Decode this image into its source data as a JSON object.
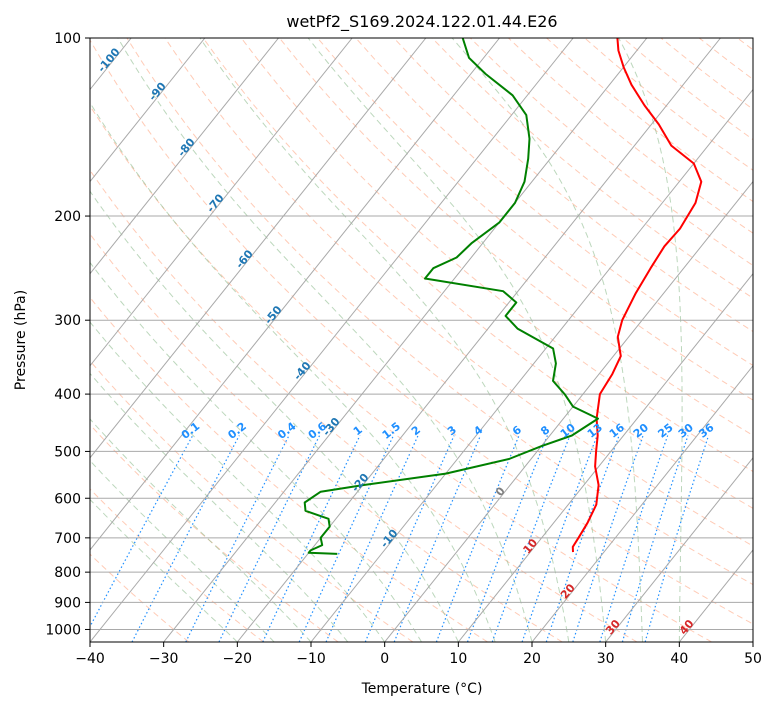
{
  "chart_data": {
    "type": "line",
    "title": "wetPf2_S169.2024.122.01.44.E26",
    "xlabel": "Temperature (°C)",
    "ylabel": "Pressure (hPa)",
    "xlim": [
      -40,
      50
    ],
    "ylim": [
      1050,
      100
    ],
    "y_scale": "log",
    "x_ticks": [
      "−40",
      "−30",
      "−20",
      "−10",
      "0",
      "10",
      "20",
      "30",
      "40",
      "50"
    ],
    "y_ticks": [
      "1000",
      "900",
      "800",
      "700",
      "600",
      "500",
      "400",
      "300",
      "200",
      "100"
    ],
    "grid": true,
    "series": [
      {
        "color": "#ff0000",
        "points": [
          {
            "t": 15.8,
            "p": 740
          },
          {
            "t": 15.2,
            "p": 725
          },
          {
            "t": 15.0,
            "p": 700
          },
          {
            "t": 14.6,
            "p": 660
          },
          {
            "t": 13.8,
            "p": 615
          },
          {
            "t": 12.0,
            "p": 570
          },
          {
            "t": 9.5,
            "p": 530
          },
          {
            "t": 8.0,
            "p": 500
          },
          {
            "t": 6.5,
            "p": 470
          },
          {
            "t": 4.5,
            "p": 440
          },
          {
            "t": 2.3,
            "p": 400
          },
          {
            "t": 1.8,
            "p": 370
          },
          {
            "t": 1.0,
            "p": 345
          },
          {
            "t": -1.5,
            "p": 320
          },
          {
            "t": -2.7,
            "p": 300
          },
          {
            "t": -3.8,
            "p": 270
          },
          {
            "t": -4.5,
            "p": 245
          },
          {
            "t": -5.0,
            "p": 225
          },
          {
            "t": -4.8,
            "p": 210
          },
          {
            "t": -5.5,
            "p": 190
          },
          {
            "t": -7.0,
            "p": 175
          },
          {
            "t": -10.0,
            "p": 163
          },
          {
            "t": -15.0,
            "p": 152
          },
          {
            "t": -19.0,
            "p": 140
          },
          {
            "t": -23.0,
            "p": 130
          },
          {
            "t": -27.0,
            "p": 120
          },
          {
            "t": -30.0,
            "p": 112
          },
          {
            "t": -32.5,
            "p": 105
          },
          {
            "t": -34.0,
            "p": 100
          }
        ]
      },
      {
        "color": "#008000",
        "points": [
          {
            "t": -16.0,
            "p": 745
          },
          {
            "t": -20.0,
            "p": 742
          },
          {
            "t": -20.0,
            "p": 735
          },
          {
            "t": -19.0,
            "p": 720
          },
          {
            "t": -20.0,
            "p": 700
          },
          {
            "t": -20.0,
            "p": 670
          },
          {
            "t": -21.0,
            "p": 650
          },
          {
            "t": -25.0,
            "p": 630
          },
          {
            "t": -26.0,
            "p": 610
          },
          {
            "t": -25.0,
            "p": 585
          },
          {
            "t": -20.0,
            "p": 570
          },
          {
            "t": -10.0,
            "p": 545
          },
          {
            "t": -3.0,
            "p": 515
          },
          {
            "t": 0.0,
            "p": 490
          },
          {
            "t": 3.0,
            "p": 470
          },
          {
            "t": 4.7,
            "p": 440
          },
          {
            "t": 0.0,
            "p": 420
          },
          {
            "t": -2.5,
            "p": 400
          },
          {
            "t": -5.5,
            "p": 380
          },
          {
            "t": -7.0,
            "p": 355
          },
          {
            "t": -9.0,
            "p": 335
          },
          {
            "t": -16.0,
            "p": 310
          },
          {
            "t": -19.0,
            "p": 295
          },
          {
            "t": -19.0,
            "p": 280
          },
          {
            "t": -22.0,
            "p": 268
          },
          {
            "t": -34.0,
            "p": 255
          },
          {
            "t": -34.0,
            "p": 245
          },
          {
            "t": -32.0,
            "p": 235
          },
          {
            "t": -31.5,
            "p": 222
          },
          {
            "t": -30.0,
            "p": 205
          },
          {
            "t": -30.0,
            "p": 190
          },
          {
            "t": -31.0,
            "p": 175
          },
          {
            "t": -33.0,
            "p": 160
          },
          {
            "t": -35.0,
            "p": 148
          },
          {
            "t": -38.0,
            "p": 135
          },
          {
            "t": -42.0,
            "p": 125
          },
          {
            "t": -48.0,
            "p": 115
          },
          {
            "t": -52.0,
            "p": 108
          },
          {
            "t": -55.0,
            "p": 100
          }
        ]
      }
    ],
    "isotherm_labels": [
      "-100",
      "-90",
      "-80",
      "-70",
      "-60",
      "-50",
      "-40",
      "-30",
      "-20",
      "-10",
      "0",
      "10",
      "20",
      "30",
      "40"
    ],
    "mixing_ratio_labels": [
      "0.1",
      "0.2",
      "0.4",
      "0.6",
      "1",
      "1.5",
      "2",
      "3",
      "4",
      "6",
      "8",
      "10",
      "13",
      "16",
      "20",
      "25",
      "30",
      "36"
    ],
    "colors": {
      "temperature": "#ff0000",
      "dewpoint": "#008000",
      "isotherm_labels": "#1f77b4",
      "warm_isotherm_labels": "#d62728",
      "zero_label": "#7f7f7f",
      "mixing_ratio": "#1f8fff",
      "dry_adiabat": "#ffa07a",
      "moist_adiabat": "#8fbc8f",
      "grid": "#a9a9a9"
    }
  }
}
